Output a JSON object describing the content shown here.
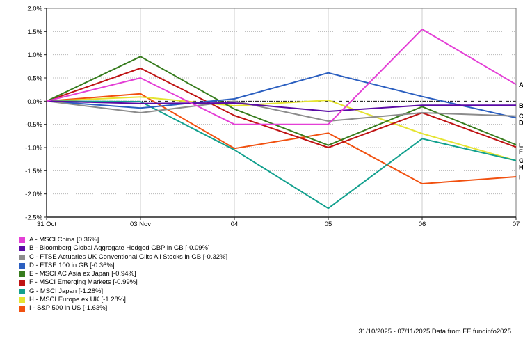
{
  "chart_data": {
    "type": "line",
    "title": "",
    "xlabel": "",
    "ylabel": "",
    "categories": [
      "31 Oct",
      "03 Nov",
      "04",
      "05",
      "06",
      "07"
    ],
    "ylim": [
      -2.5,
      2.0
    ],
    "grid": true,
    "legend_position": "bottom-left",
    "zero_line": "black dash-dot",
    "y_ticks": [
      {
        "label": "2.0%",
        "value": 2.0
      },
      {
        "label": "1.5%",
        "value": 1.5
      },
      {
        "label": "1.0%",
        "value": 1.0
      },
      {
        "label": "0.5%",
        "value": 0.5
      },
      {
        "label": "0.0%",
        "value": 0.0
      },
      {
        "label": "-0.5%",
        "value": -0.5
      },
      {
        "label": "-1.0%",
        "value": -1.0
      },
      {
        "label": "-1.5%",
        "value": -1.5
      },
      {
        "label": "-2.0%",
        "value": -2.0
      },
      {
        "label": "-2.5%",
        "value": -2.5
      }
    ],
    "series": [
      {
        "letter": "A",
        "name": "A - MSCI China [0.36%]",
        "final_value": 0.36,
        "color": "#E43FD6",
        "values": [
          0,
          0.5,
          -0.5,
          -0.5,
          1.55,
          0.36
        ]
      },
      {
        "letter": "B",
        "name": "B - Bloomberg Global Aggregate Hedged GBP in GB [-0.09%]",
        "final_value": -0.09,
        "color": "#5A0AA5",
        "values": [
          0,
          -0.05,
          -0.04,
          -0.22,
          -0.09,
          -0.09
        ]
      },
      {
        "letter": "C",
        "name": "C - FTSE Actuaries UK Conventional Gilts All Stocks in GB [-0.32%]",
        "final_value": -0.32,
        "color": "#8C8C8C",
        "values": [
          0,
          -0.25,
          0.0,
          -0.43,
          -0.25,
          -0.32
        ]
      },
      {
        "letter": "D",
        "name": "D - FTSE 100 in GB [-0.36%]",
        "final_value": -0.36,
        "color": "#2B5FC0",
        "values": [
          0,
          -0.15,
          0.05,
          0.61,
          0.1,
          -0.36
        ]
      },
      {
        "letter": "E",
        "name": "E - MSCI AC Asia ex Japan [-0.94%]",
        "final_value": -0.94,
        "color": "#377C1E",
        "values": [
          0,
          0.96,
          -0.17,
          -0.95,
          -0.12,
          -0.94
        ]
      },
      {
        "letter": "F",
        "name": "F - MSCI Emerging Markets [-0.99%]",
        "final_value": -0.99,
        "color": "#BF1313",
        "values": [
          0,
          0.71,
          -0.31,
          -1.0,
          -0.25,
          -0.99
        ]
      },
      {
        "letter": "G",
        "name": "G - MSCI Japan [-1.28%]",
        "final_value": -1.28,
        "color": "#12A08E",
        "values": [
          0,
          -0.01,
          -1.05,
          -2.31,
          -0.81,
          -1.28
        ]
      },
      {
        "letter": "H",
        "name": "H - MSCI Europe ex UK [-1.28%]",
        "final_value": -1.28,
        "color": "#E5E431",
        "values": [
          0,
          0.09,
          -0.1,
          0.02,
          -0.7,
          -1.28
        ]
      },
      {
        "letter": "I",
        "name": "I - S&P 500 in US [-1.63%]",
        "final_value": -1.63,
        "color": "#F1500F",
        "values": [
          0,
          0.16,
          -1.02,
          -0.69,
          -1.78,
          -1.63
        ]
      }
    ]
  },
  "footer": {
    "text": "31/10/2025 - 07/11/2025 Data from FE fundinfo2025"
  },
  "colors": {
    "grid_minor": "#b8b8b8",
    "grid_vertical": "#cccccc",
    "plot_border": "#7a7a7a",
    "axis": "#222222",
    "zero_line": "#111111"
  }
}
